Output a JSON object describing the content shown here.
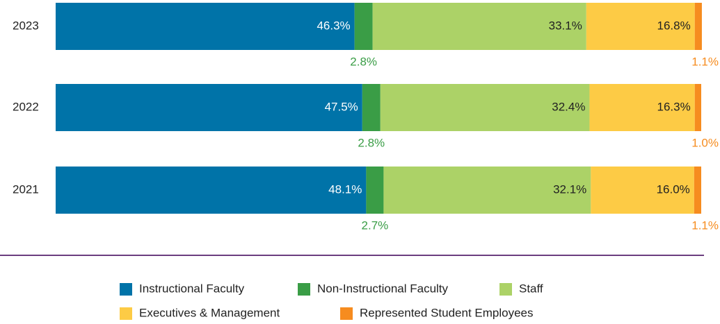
{
  "chart_data": {
    "type": "stacked-bar-horizontal",
    "categories": [
      "2023",
      "2022",
      "2021"
    ],
    "xlim": [
      0,
      100
    ],
    "series": [
      {
        "name": "Instructional Faculty",
        "color": "#0073a8",
        "values": [
          46.3,
          47.5,
          48.1
        ],
        "value_labels": [
          "46.3%",
          "47.5%",
          "48.1%"
        ]
      },
      {
        "name": "Non-Instructional Faculty",
        "color": "#3a9d46",
        "values": [
          2.8,
          2.8,
          2.7
        ],
        "value_labels": [
          "2.8%",
          "2.8%",
          "2.7%"
        ]
      },
      {
        "name": "Staff",
        "color": "#acd267",
        "values": [
          33.1,
          32.4,
          32.1
        ],
        "value_labels": [
          "33.1%",
          "32.4%",
          "32.1%"
        ]
      },
      {
        "name": "Executives & Management",
        "color": "#fdcb45",
        "values": [
          16.8,
          16.3,
          16.0
        ],
        "value_labels": [
          "16.8%",
          "16.3%",
          "16.0%"
        ]
      },
      {
        "name": "Represented Student Employees",
        "color": "#f68c1f",
        "values": [
          1.1,
          1.0,
          1.1
        ],
        "value_labels": [
          "1.1%",
          "1.0%",
          "1.1%"
        ]
      }
    ]
  }
}
